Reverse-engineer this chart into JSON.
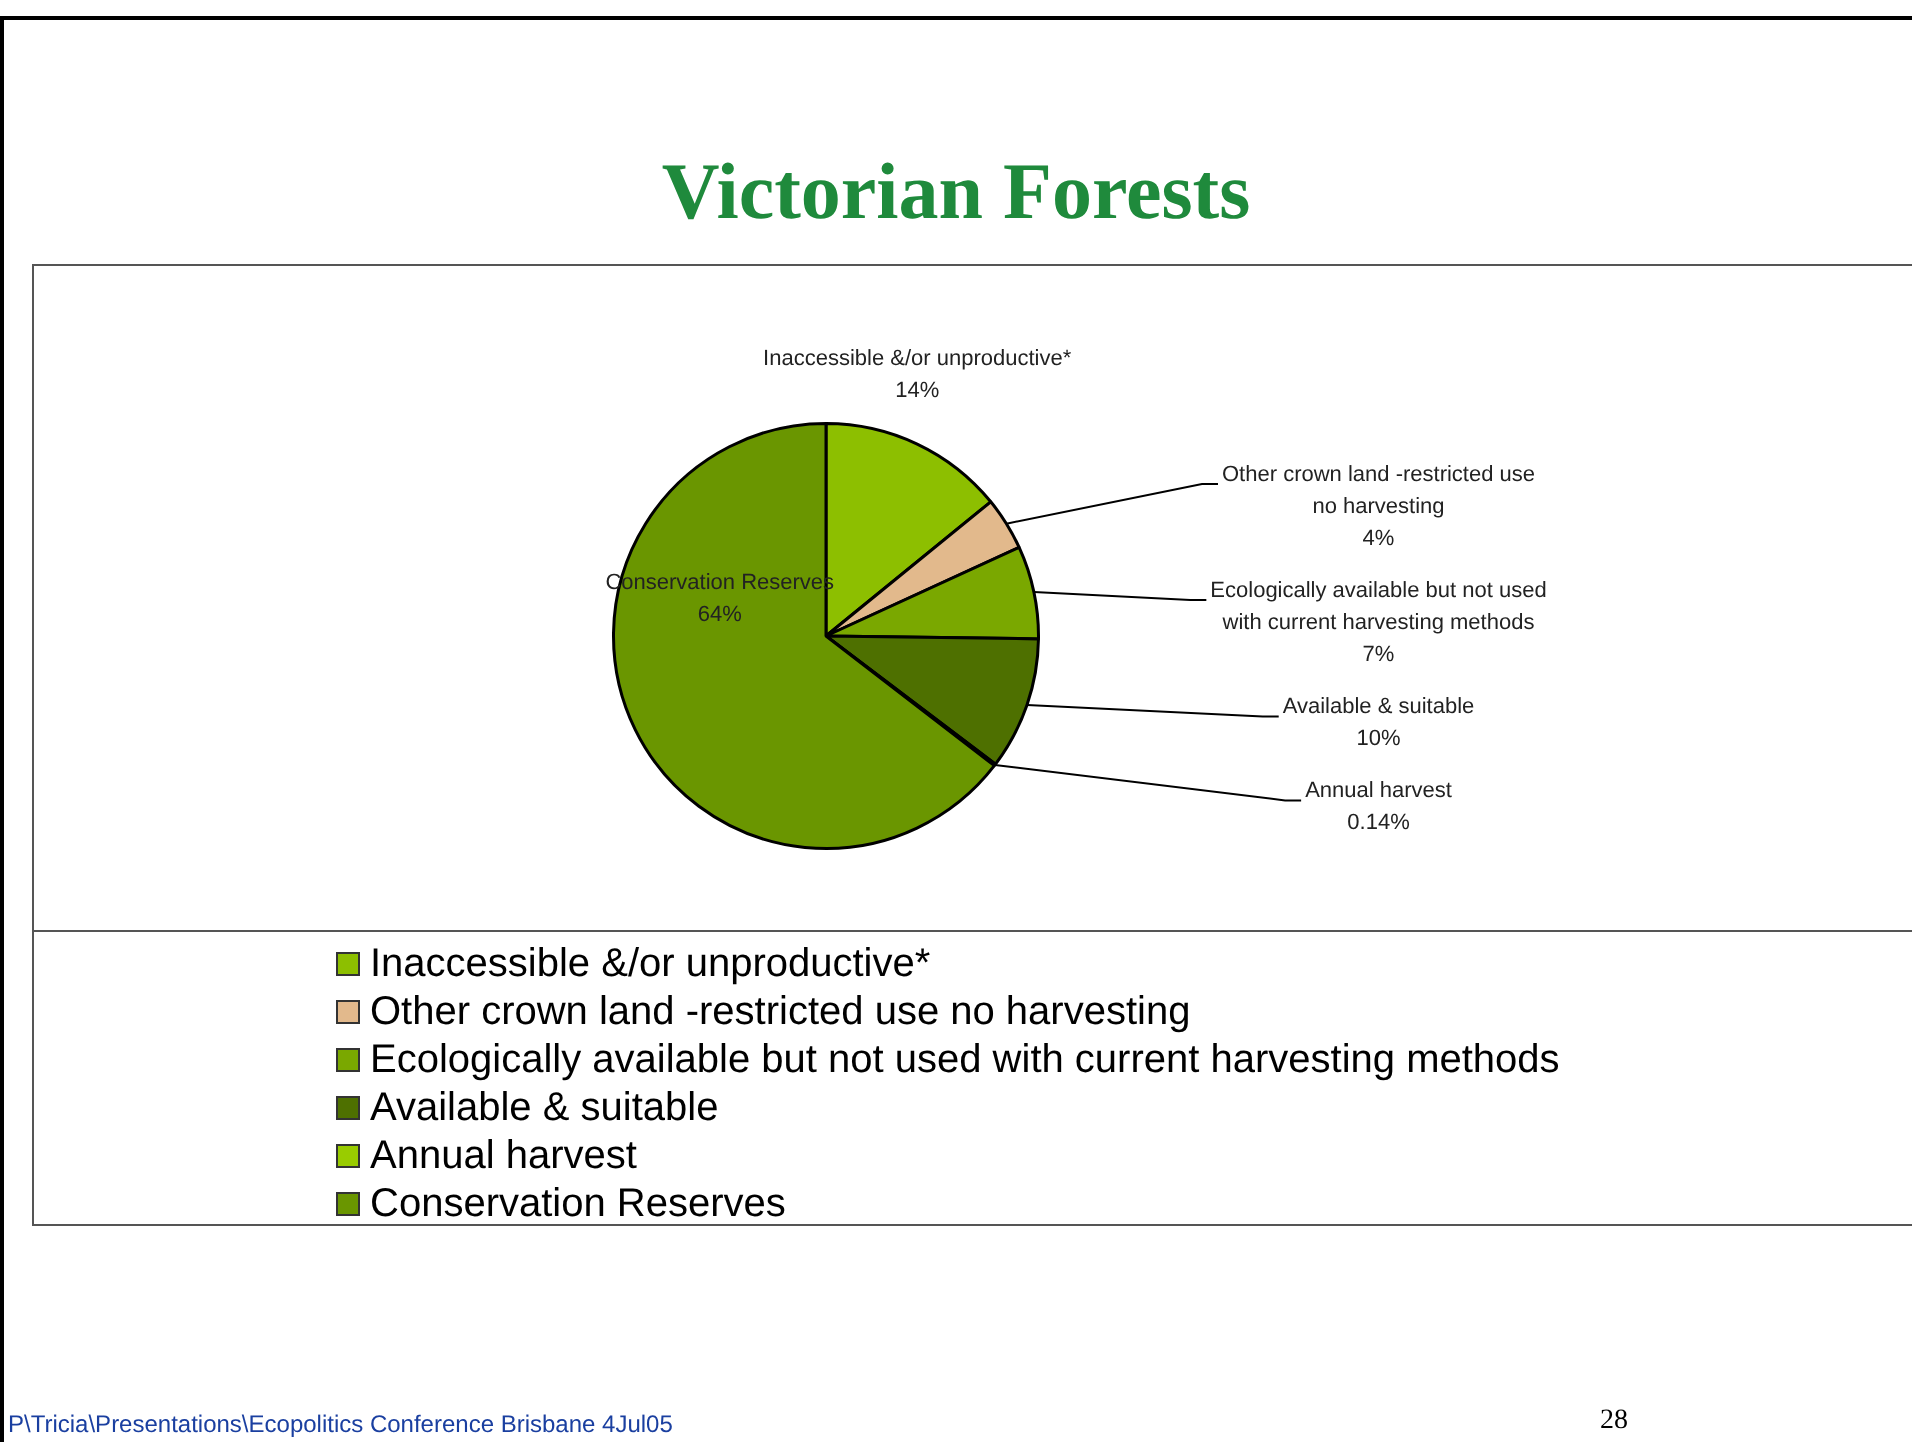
{
  "chart_data": {
    "type": "pie",
    "title": "Victorian Forests",
    "categories": [
      "Inaccessible &/or unproductive*",
      "Other crown land -restricted use no harvesting",
      "Ecologically available but not used with current harvesting methods",
      "Available & suitable",
      "Annual harvest",
      "Conservation Reserves"
    ],
    "values": [
      14,
      4,
      7,
      10,
      0.14,
      64
    ],
    "value_labels": [
      "14%",
      "4%",
      "7%",
      "10%",
      "0.14%",
      "64%"
    ],
    "colors": [
      "#8dbf00",
      "#e2b98c",
      "#7aa800",
      "#4e7000",
      "#99cc00",
      "#6a9600"
    ],
    "legend": "bottom",
    "annotations": [
      "P\\Tricia\\Presentations\\Ecopolitics Conference Brisbane 4Jul05",
      "28"
    ]
  }
}
